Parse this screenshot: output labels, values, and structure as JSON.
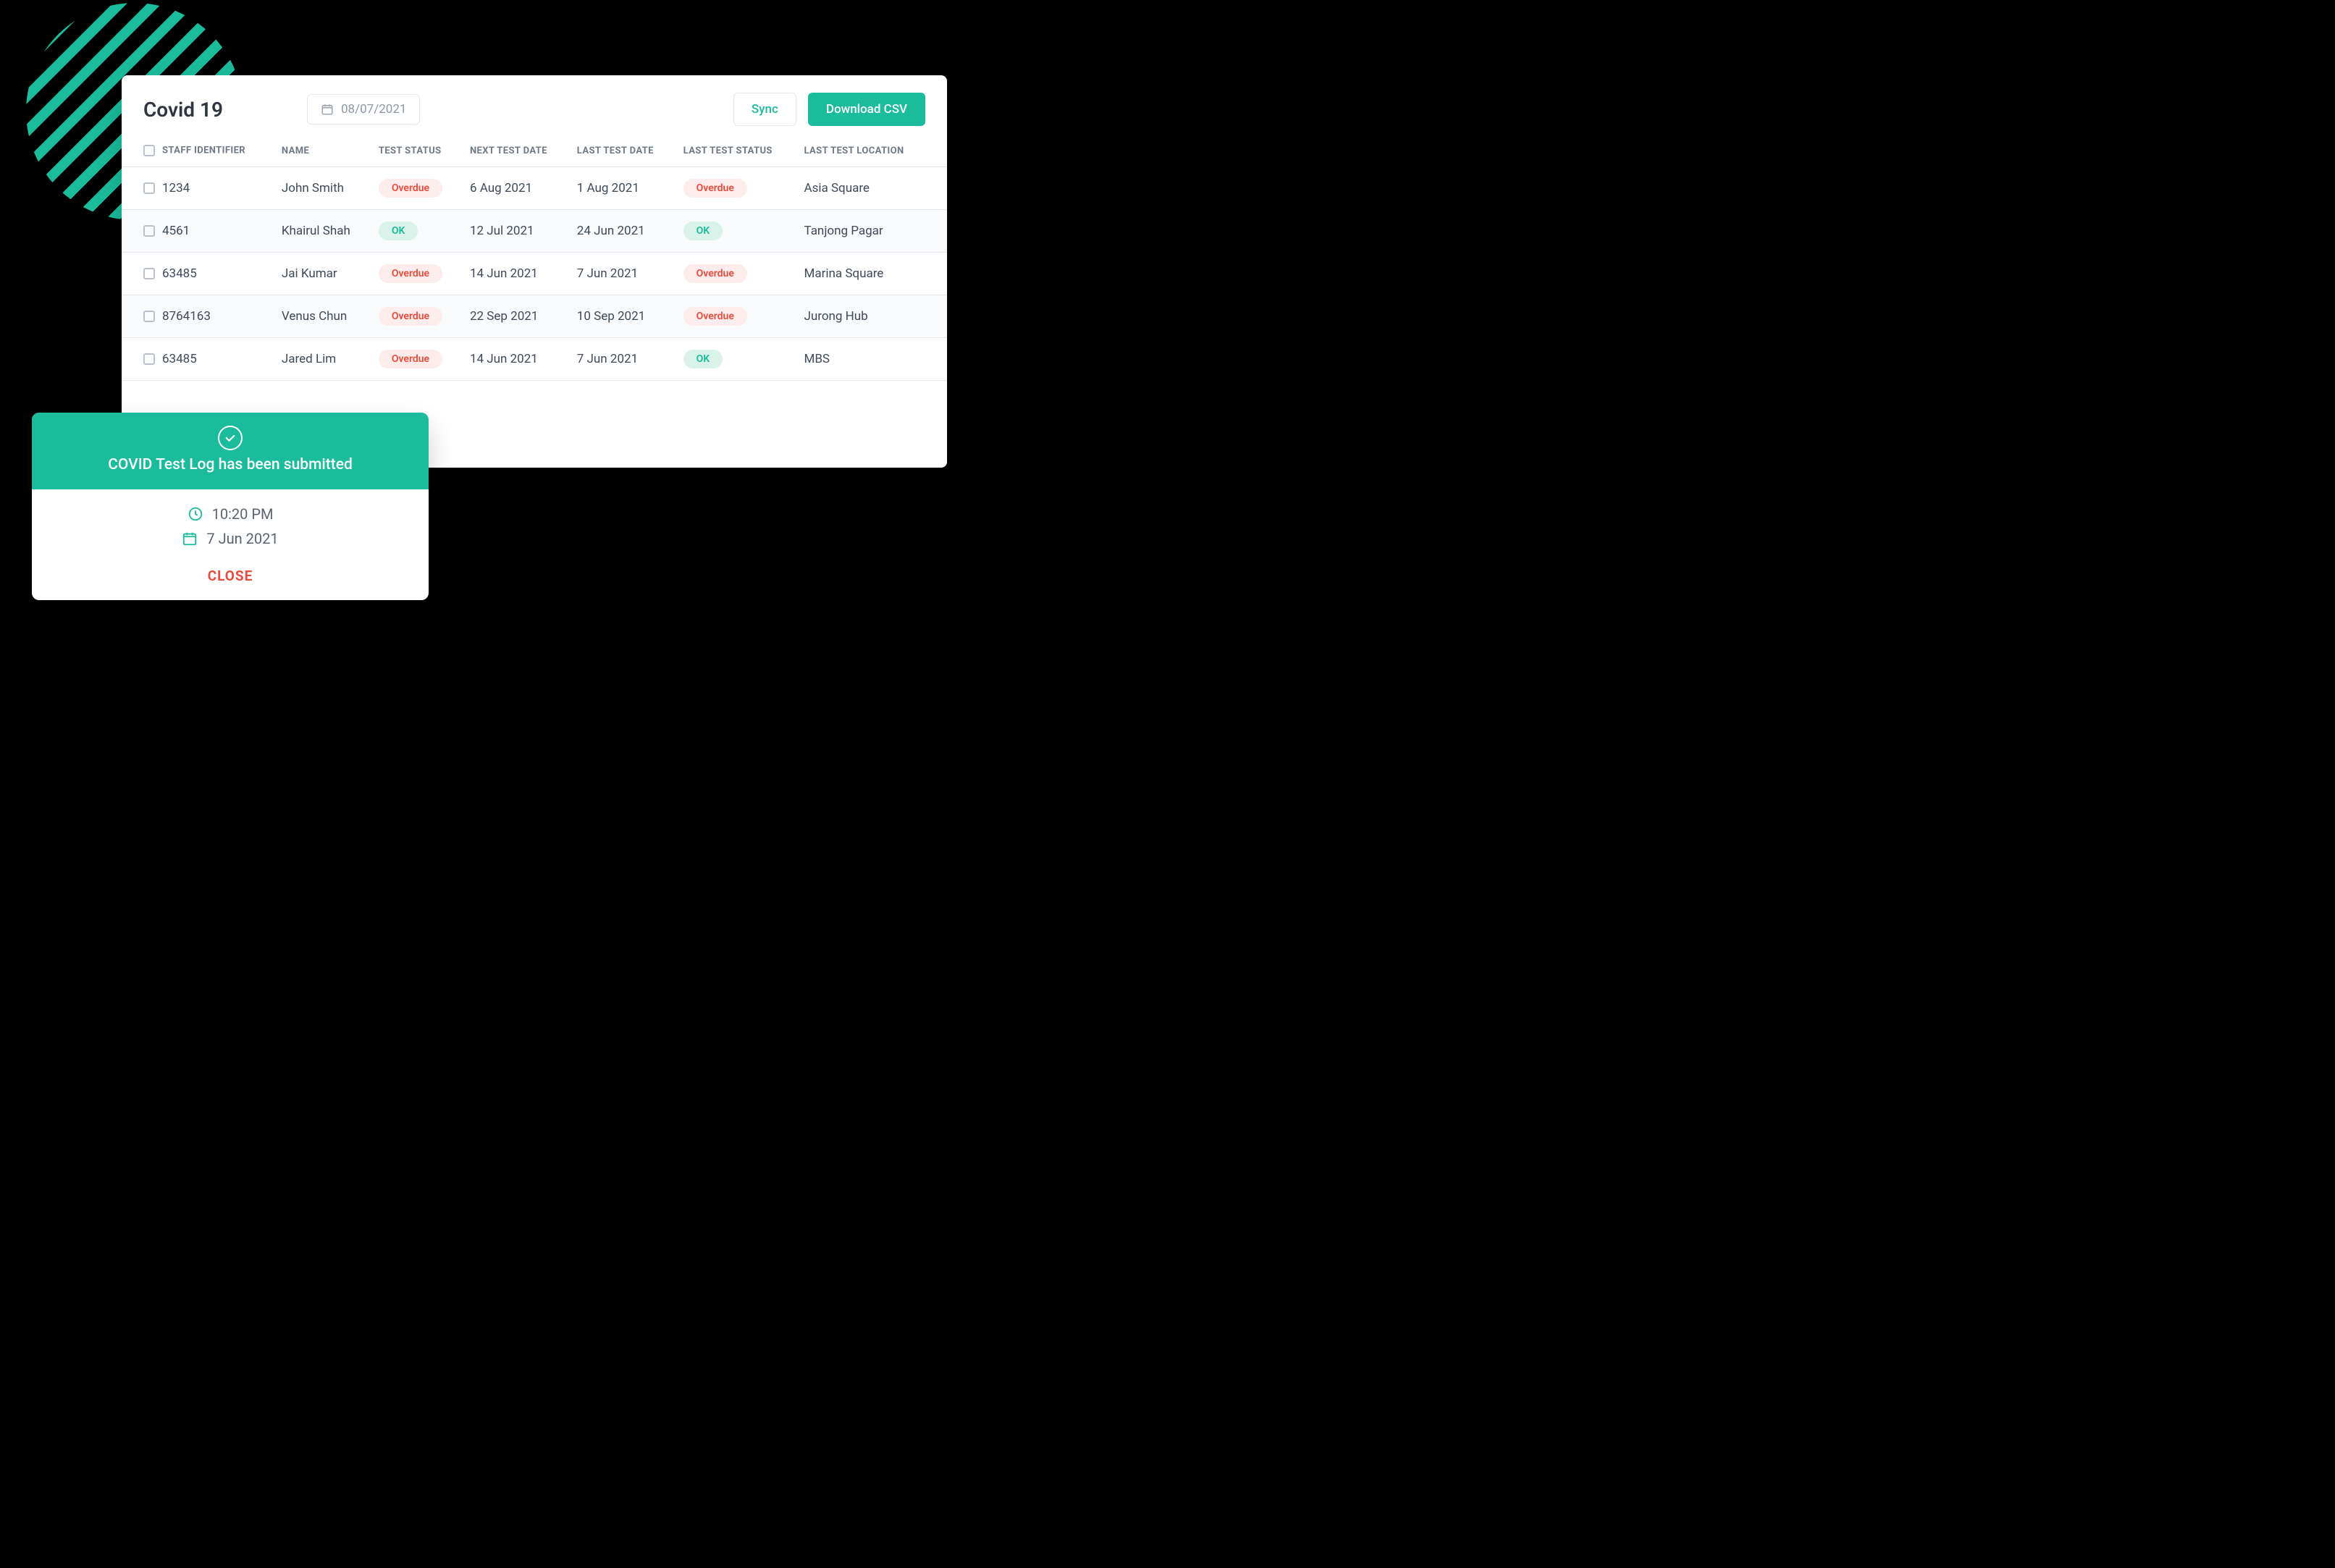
{
  "header": {
    "title": "Covid 19",
    "date": "08/07/2021",
    "sync_label": "Sync",
    "download_label": "Download CSV"
  },
  "columns": [
    "STAFF IDENTIFIER",
    "NAME",
    "TEST STATUS",
    "NEXT TEST DATE",
    "LAST TEST DATE",
    "LAST TEST STATUS",
    "LAST TEST LOCATION"
  ],
  "rows": [
    {
      "id": "1234",
      "name": "John Smith",
      "test_status": "Overdue",
      "test_status_kind": "overdue",
      "next": "6 Aug 2021",
      "last": "1 Aug 2021",
      "last_status": "Overdue",
      "last_status_kind": "overdue",
      "location": "Asia Square"
    },
    {
      "id": "4561",
      "name": "Khairul Shah",
      "test_status": "OK",
      "test_status_kind": "ok",
      "next": "12 Jul 2021",
      "last": "24 Jun 2021",
      "last_status": "OK",
      "last_status_kind": "ok",
      "location": "Tanjong Pagar"
    },
    {
      "id": "63485",
      "name": "Jai Kumar",
      "test_status": "Overdue",
      "test_status_kind": "overdue",
      "next": "14 Jun 2021",
      "last": "7 Jun 2021",
      "last_status": "Overdue",
      "last_status_kind": "overdue",
      "location": "Marina Square"
    },
    {
      "id": "8764163",
      "name": "Venus Chun",
      "test_status": "Overdue",
      "test_status_kind": "overdue",
      "next": "22 Sep 2021",
      "last": "10 Sep 2021",
      "last_status": "Overdue",
      "last_status_kind": "overdue",
      "location": "Jurong Hub"
    },
    {
      "id": "63485",
      "name": "Jared Lim",
      "test_status": "Overdue",
      "test_status_kind": "overdue",
      "next": "14 Jun 2021",
      "last": "7 Jun 2021",
      "last_status": "OK",
      "last_status_kind": "ok",
      "location": "MBS"
    }
  ],
  "toast": {
    "title": "COVID Test Log has been submitted",
    "time": "10:20 PM",
    "date": "7 Jun 2021",
    "close": "CLOSE"
  },
  "style": {
    "accent": "#1abc9c",
    "badge_overdue_bg": "#fdecec",
    "badge_overdue_fg": "#e74c3c",
    "badge_ok_bg": "#d9f2ea",
    "badge_ok_fg": "#1abc9c"
  }
}
